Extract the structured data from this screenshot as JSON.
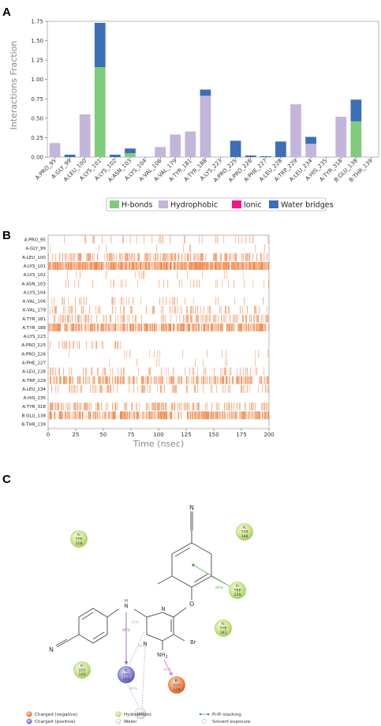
{
  "panels": {
    "a": "A",
    "b": "B",
    "c": "C"
  },
  "colors": {
    "hbonds": "#7fcc7a",
    "hydrophobic": "#c4b5da",
    "ionic": "#f01789",
    "water": "#3b6fb6",
    "barcode": "#f08040"
  },
  "chart_data": [
    {
      "type": "bar",
      "stacked": true,
      "ylabel": "Interactions Fraction",
      "ylim": [
        0,
        1.75
      ],
      "yticks": [
        "0.00",
        "0.25",
        "0.50",
        "0.75",
        "1.00",
        "1.25",
        "1.50",
        "1.75"
      ],
      "categories": [
        "A:PRO_95",
        "A:GLY_99",
        "A:LEU_100",
        "A:LYS_101",
        "A:LYS_102",
        "A:ASN_103",
        "A:LYS_104",
        "A:VAL_106",
        "A:VAL_179",
        "A:TYR_181",
        "A:TYR_188",
        "A:LYS_223",
        "A:PRO_225",
        "A:PRO_226",
        "A:PHE_227",
        "A:LEU_228",
        "A:TRP_229",
        "A:LEU_234",
        "A:HIS_235",
        "A:TYR_318",
        "B:GLU_138",
        "B:THR_139"
      ],
      "series": [
        {
          "name": "H-bonds",
          "values": [
            0,
            0,
            0,
            1.16,
            0,
            0.05,
            0,
            0,
            0,
            0,
            0,
            0,
            0,
            0,
            0,
            0,
            0,
            0,
            0,
            0,
            0.46,
            0
          ]
        },
        {
          "name": "Hydrophobic",
          "values": [
            0.18,
            0,
            0.55,
            0,
            0,
            0,
            0,
            0.13,
            0.29,
            0.33,
            0.79,
            0,
            0,
            0,
            0,
            0,
            0.68,
            0.17,
            0,
            0.52,
            0,
            0
          ]
        },
        {
          "name": "Ionic",
          "values": [
            0,
            0,
            0,
            0,
            0,
            0,
            0,
            0,
            0,
            0,
            0,
            0,
            0,
            0,
            0,
            0,
            0,
            0,
            0,
            0,
            0,
            0
          ]
        },
        {
          "name": "Water bridges",
          "values": [
            0,
            0.03,
            0,
            0.57,
            0.03,
            0.06,
            0,
            0,
            0,
            0,
            0.08,
            0,
            0.21,
            0.02,
            0.01,
            0.2,
            0,
            0.09,
            0,
            0,
            0.28,
            0
          ]
        }
      ],
      "legend": {
        "placement": "bottom",
        "entries": [
          "H-bonds",
          "Hydrophobic",
          "Ionic",
          "Water bridges"
        ]
      }
    },
    {
      "type": "heatmap",
      "xlabel": "Time (nsec)",
      "xlim": [
        0,
        200
      ],
      "xticks": [
        "0",
        "25",
        "50",
        "75",
        "100",
        "125",
        "150",
        "175",
        "200"
      ],
      "rows": [
        "A:PRO_95",
        "A:GLY_99",
        "A:LEU_100",
        "A:LYS_101",
        "A:LYS_102",
        "A:ASN_103",
        "A:LYS_104",
        "A:VAL_106",
        "A:VAL_179",
        "A:TYR_181",
        "A:TYR_188",
        "A:LYS_223",
        "A:PRO_225",
        "A:PRO_226",
        "A:PHE_227",
        "A:LEU_228",
        "A:TRP_229",
        "A:LEU_234",
        "A:HIS_235",
        "A:TYR_318",
        "B:GLU_138",
        "B:THR_139"
      ],
      "density": [
        0.15,
        0.02,
        0.45,
        0.9,
        0.04,
        0.1,
        0.0,
        0.12,
        0.25,
        0.3,
        0.7,
        0.0,
        0.2,
        0.03,
        0.02,
        0.2,
        0.55,
        0.25,
        0.0,
        0.4,
        0.65,
        0.0
      ],
      "time_window": [
        [
          0,
          200
        ],
        [
          0,
          200
        ],
        [
          0,
          200
        ],
        [
          0,
          200
        ],
        [
          0,
          200
        ],
        [
          0,
          200
        ],
        [
          0,
          200
        ],
        [
          0,
          200
        ],
        [
          0,
          200
        ],
        [
          0,
          200
        ],
        [
          0,
          200
        ],
        [
          0,
          200
        ],
        [
          0,
          67
        ],
        [
          0,
          200
        ],
        [
          0,
          200
        ],
        [
          0,
          200
        ],
        [
          0,
          200
        ],
        [
          0,
          200
        ],
        [
          0,
          200
        ],
        [
          0,
          200
        ],
        [
          0,
          200
        ],
        [
          0,
          200
        ]
      ]
    }
  ],
  "diagram": {
    "atoms": {
      "n_top": "N",
      "o": "O",
      "nh": "N",
      "h": "H",
      "n_ring1": "N",
      "n_ring2": "N",
      "br": "Br",
      "nh2": "NH",
      "nh2_sub": "2",
      "n_left": "N"
    },
    "residues": [
      {
        "id": "tyr318",
        "chain": "A:",
        "name": "TYR",
        "num": "318"
      },
      {
        "id": "tyr188",
        "chain": "A:",
        "name": "TYR",
        "num": "188"
      },
      {
        "id": "trp229",
        "chain": "A:",
        "name": "TRP",
        "num": "229"
      },
      {
        "id": "tyr181",
        "chain": "A:",
        "name": "TYR",
        "num": "181"
      },
      {
        "id": "lys101",
        "chain": "A:",
        "name": "LYS",
        "num": "101"
      },
      {
        "id": "glu138",
        "chain": "B:",
        "name": "GLU",
        "num": "138"
      },
      {
        "id": "leu100",
        "chain": "A:",
        "name": "LEU",
        "num": "100"
      }
    ],
    "water_label": "H₂O",
    "percentages": {
      "pipi": "80%",
      "nh_lys": "88%",
      "ring_lys": "33%",
      "lys_water": "46%",
      "water_ring": "45%",
      "nh2_glu": "45%",
      "ring_water2": "46%"
    },
    "legend": {
      "charged_negative": "Charged (negative)",
      "charged_positive": "Charged (positive)",
      "hydrophobic": "Hydrophobic",
      "water": "Water",
      "pipi": "Pi-Pi stacking",
      "solvent": "Solvent exposure"
    }
  }
}
